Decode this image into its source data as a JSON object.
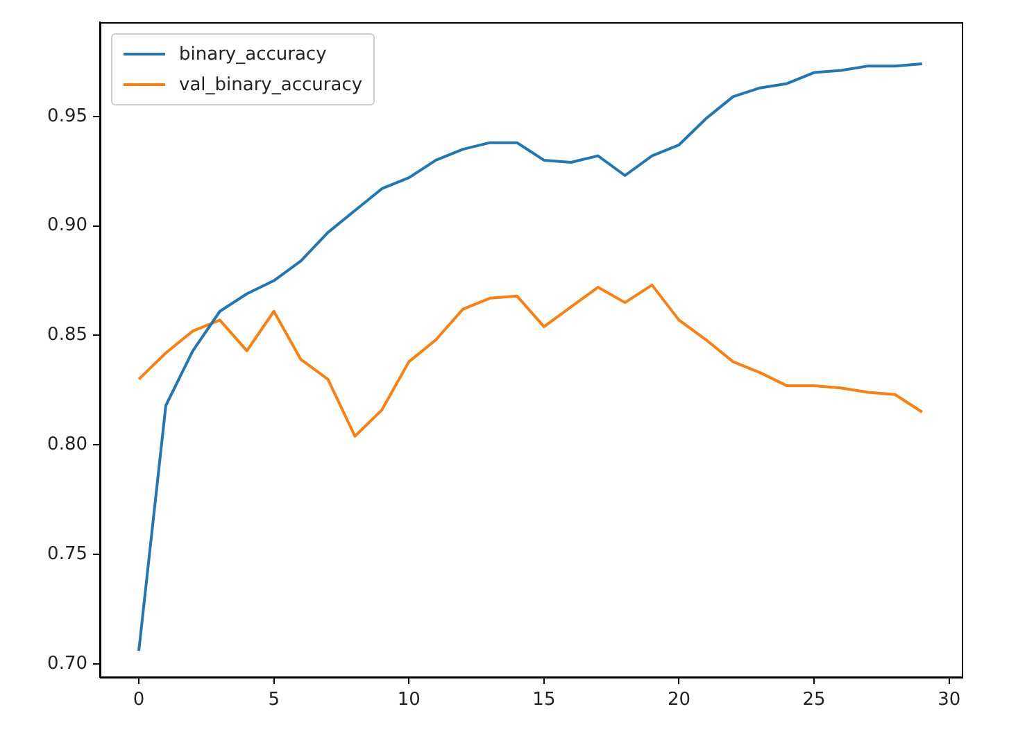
{
  "chart_data": {
    "type": "line",
    "x": [
      0,
      1,
      2,
      3,
      4,
      5,
      6,
      7,
      8,
      9,
      10,
      11,
      12,
      13,
      14,
      15,
      16,
      17,
      18,
      19,
      20,
      21,
      22,
      23,
      24,
      25,
      26,
      27,
      28,
      29
    ],
    "series": [
      {
        "name": "binary_accuracy",
        "color": "#1f77b4",
        "values": [
          0.706,
          0.818,
          0.843,
          0.861,
          0.869,
          0.875,
          0.884,
          0.897,
          0.907,
          0.917,
          0.922,
          0.93,
          0.935,
          0.938,
          0.938,
          0.93,
          0.929,
          0.932,
          0.923,
          0.932,
          0.937,
          0.949,
          0.959,
          0.963,
          0.965,
          0.97,
          0.971,
          0.973,
          0.973,
          0.974
        ]
      },
      {
        "name": "val_binary_accuracy",
        "color": "#ff7f0e",
        "values": [
          0.83,
          0.842,
          0.852,
          0.857,
          0.843,
          0.861,
          0.839,
          0.83,
          0.804,
          0.816,
          0.838,
          0.848,
          0.862,
          0.867,
          0.868,
          0.854,
          0.863,
          0.872,
          0.865,
          0.873,
          0.857,
          0.848,
          0.838,
          0.833,
          0.827,
          0.827,
          0.826,
          0.824,
          0.823,
          0.815
        ]
      }
    ],
    "xlim": [
      -1.44,
      30.47
    ],
    "xticks": [
      0,
      5,
      10,
      15,
      20,
      25,
      30
    ],
    "ylim": [
      0.694,
      0.993
    ],
    "yticks": [
      {
        "value": 0.7,
        "label": "0.70"
      },
      {
        "value": 0.75,
        "label": "0.75"
      },
      {
        "value": 0.8,
        "label": "0.80"
      },
      {
        "value": 0.85,
        "label": "0.85"
      },
      {
        "value": 0.9,
        "label": "0.90"
      },
      {
        "value": 0.95,
        "label": "0.95"
      }
    ],
    "legend": "top left",
    "grid": false,
    "marker": "none",
    "line_style": "solid"
  }
}
